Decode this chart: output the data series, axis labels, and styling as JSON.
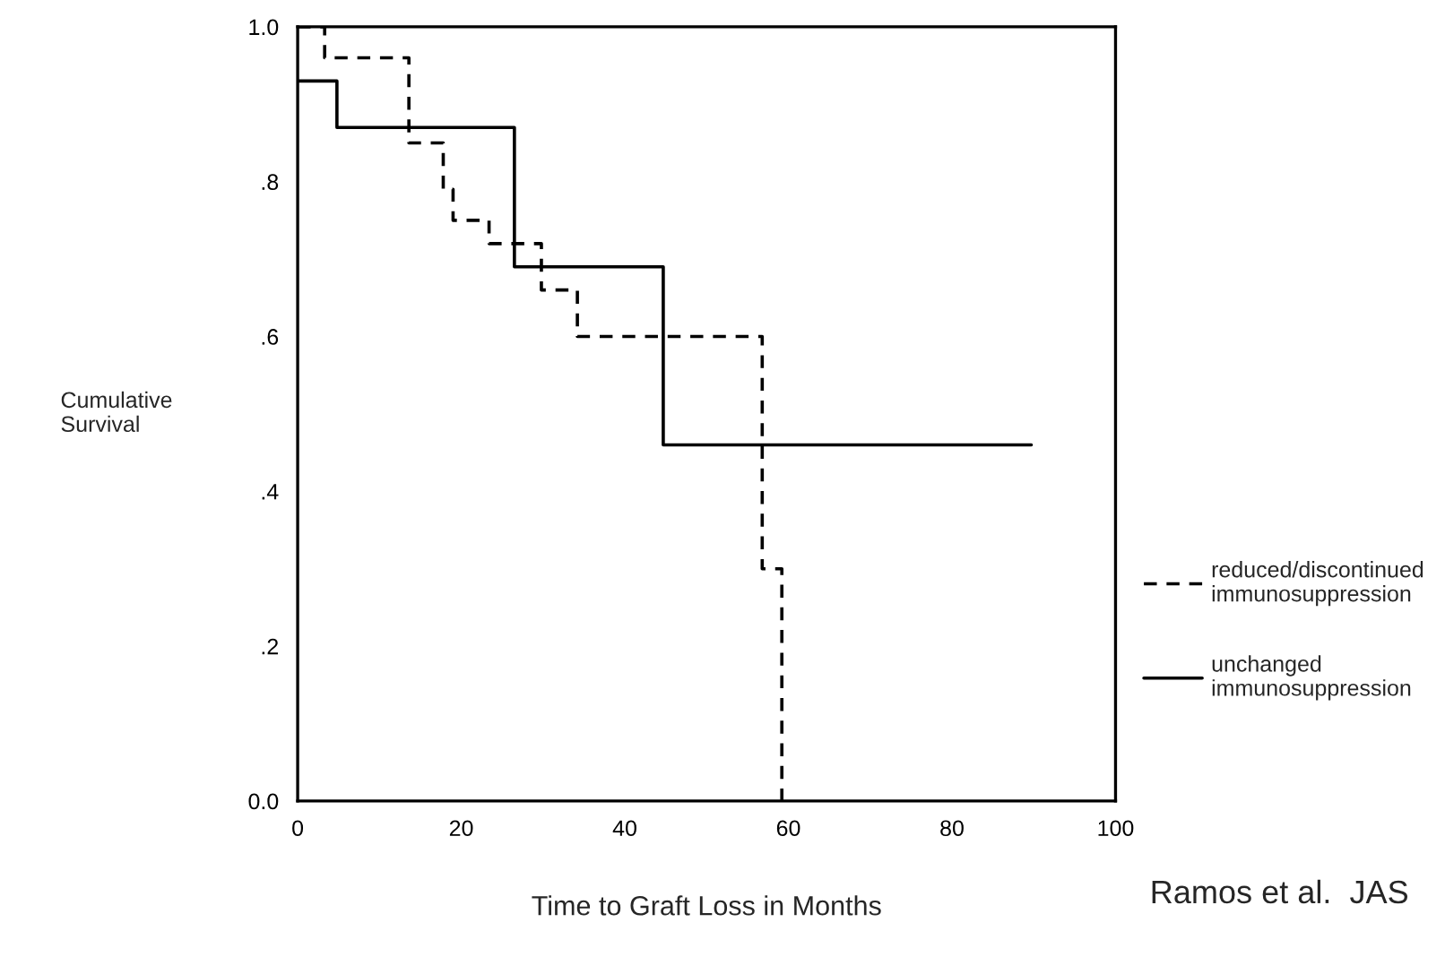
{
  "chart_data": {
    "type": "step",
    "xlabel": "Time to Graft Loss in Months",
    "ylabel": "Cumulative\nSurvival",
    "xlim": [
      0,
      100
    ],
    "xticks": [
      0,
      20,
      40,
      60,
      80,
      100
    ],
    "ylim": [
      0,
      1
    ],
    "yticks": [
      {
        "value": 0,
        "label": "0.0"
      },
      {
        "value": 0.2,
        "label": ".2"
      },
      {
        "value": 0.4,
        "label": ".4"
      },
      {
        "value": 0.6,
        "label": ".6"
      },
      {
        "value": 0.8,
        "label": ".8"
      },
      {
        "value": 1,
        "label": "1.0"
      }
    ],
    "series": [
      {
        "name": "reduced/discontinued\nimmunosuppression",
        "color": "#000000",
        "line_style": "dashed",
        "x": [
          0,
          3.3,
          13.6,
          17.8,
          19,
          23.4,
          29.8,
          34.2,
          56.8,
          59.2
        ],
        "values": [
          1.0,
          0.96,
          0.85,
          0.79,
          0.75,
          0.72,
          0.66,
          0.6,
          0.3,
          0
        ]
      },
      {
        "name": "unchanged\nimmunosuppression",
        "color": "#000000",
        "line_style": "solid",
        "x": [
          0,
          4.8,
          26.5,
          44.7,
          89.7
        ],
        "values": [
          0.93,
          0.87,
          0.69,
          0.46,
          0.46
        ]
      }
    ],
    "legend": "right",
    "grid": false,
    "annotations": [
      "Ramos et al.  JAS"
    ]
  }
}
